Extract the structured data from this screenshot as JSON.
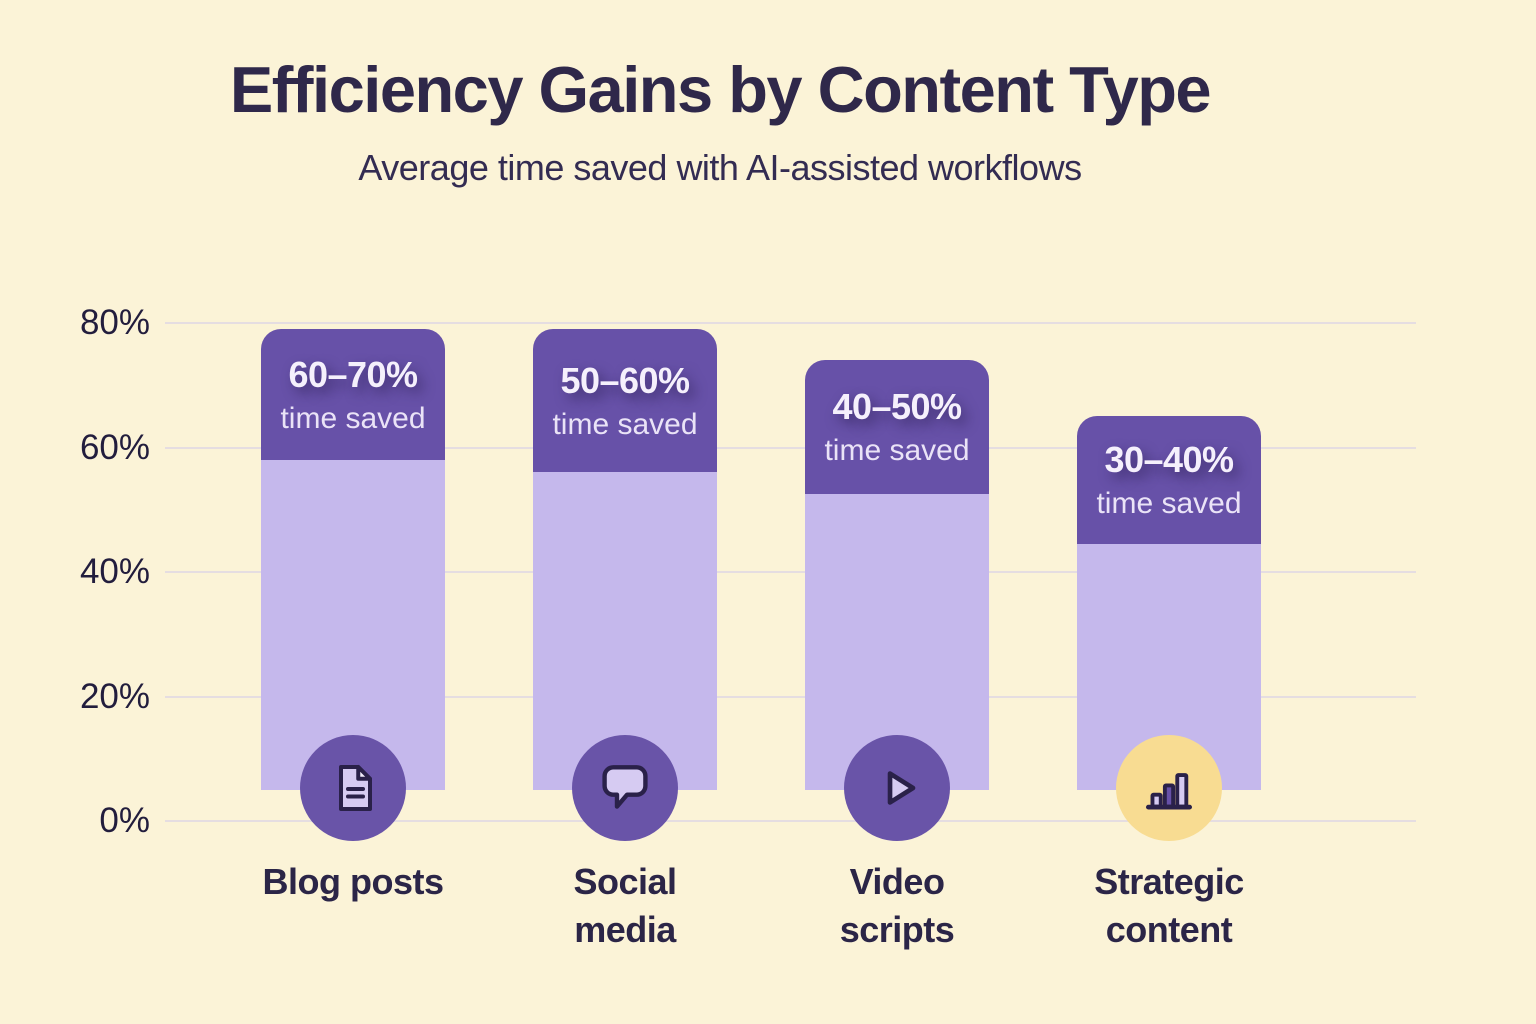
{
  "header": {
    "title": "Efficiency Gains by Content Type",
    "subtitle": "Average time saved with AI-assisted workflows"
  },
  "chart_data": {
    "type": "bar",
    "title": "Efficiency Gains by Content Type",
    "subtitle": "Average time saved with AI-assisted workflows",
    "ylabel": "",
    "xlabel": "",
    "ylim": [
      0,
      80
    ],
    "yticks": [
      0,
      20,
      40,
      60,
      80
    ],
    "ytick_labels": [
      "0%",
      "20%",
      "40%",
      "60%",
      "80%"
    ],
    "grid": "horizontal",
    "legend": "none",
    "bars": [
      {
        "category": "Blog posts",
        "category_lines": [
          "Blog posts"
        ],
        "range_label": "60–70%",
        "sub_label": "time saved",
        "bar_top_pct": 79,
        "cap_bottom_pct": 58,
        "bar_bottom_pct": 5,
        "icon": "document-icon",
        "icon_bg": "#6954A8"
      },
      {
        "category": "Social media",
        "category_lines": [
          "Social",
          "media"
        ],
        "range_label": "50–60%",
        "sub_label": "time saved",
        "bar_top_pct": 79,
        "cap_bottom_pct": 56,
        "bar_bottom_pct": 5,
        "icon": "speech-bubble-icon",
        "icon_bg": "#6954A8"
      },
      {
        "category": "Video scripts",
        "category_lines": [
          "Video",
          "scripts"
        ],
        "range_label": "40–50%",
        "sub_label": "time saved",
        "bar_top_pct": 74,
        "cap_bottom_pct": 52.5,
        "bar_bottom_pct": 5,
        "icon": "play-icon",
        "icon_bg": "#6954A8"
      },
      {
        "category": "Strategic content",
        "category_lines": [
          "Strategic",
          "content"
        ],
        "range_label": "30–40%",
        "sub_label": "time saved",
        "bar_top_pct": 65,
        "cap_bottom_pct": 44.5,
        "bar_bottom_pct": 5,
        "icon": "bar-chart-icon",
        "icon_bg": "#F8DC92"
      }
    ],
    "colors": {
      "background": "#FBF3D7",
      "bar_cap": "#6751A8",
      "bar_body": "#C5B8EC",
      "grid_line": "#E5DDE1",
      "title_text": "#2F284A",
      "axis_text": "#221D3D",
      "category_text": "#2B2547",
      "cap_text": "#F5F0FC",
      "icon_badge_purple": "#6954A8",
      "icon_badge_yellow": "#F8DC92",
      "icon_stroke": "#2A2149",
      "icon_fill": "#D6CBF2"
    }
  }
}
